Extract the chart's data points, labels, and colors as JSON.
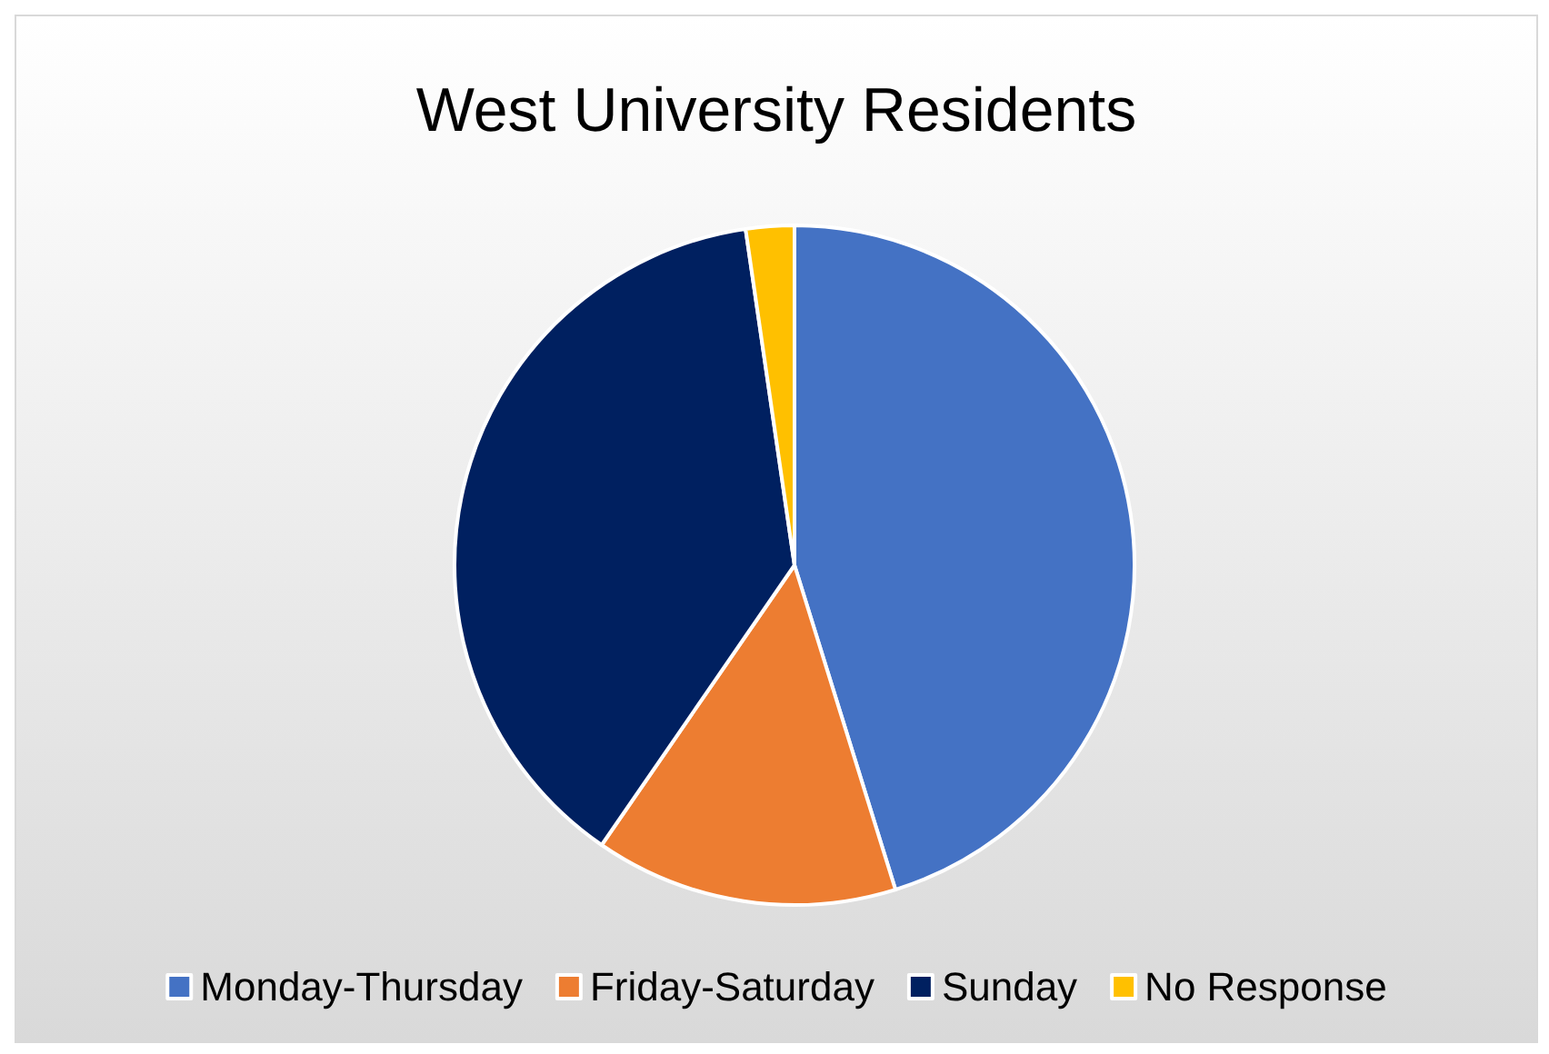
{
  "chart_data": {
    "type": "pie",
    "title": "West University Residents",
    "categories": [
      "Monday-Thursday",
      "Friday-Saturday",
      "Sunday",
      "No Response"
    ],
    "values": [
      45.2,
      14.4,
      38.1,
      2.3
    ],
    "colors": [
      "#4472c4",
      "#ed7d31",
      "#002060",
      "#ffc000"
    ],
    "legend": "bottom"
  }
}
